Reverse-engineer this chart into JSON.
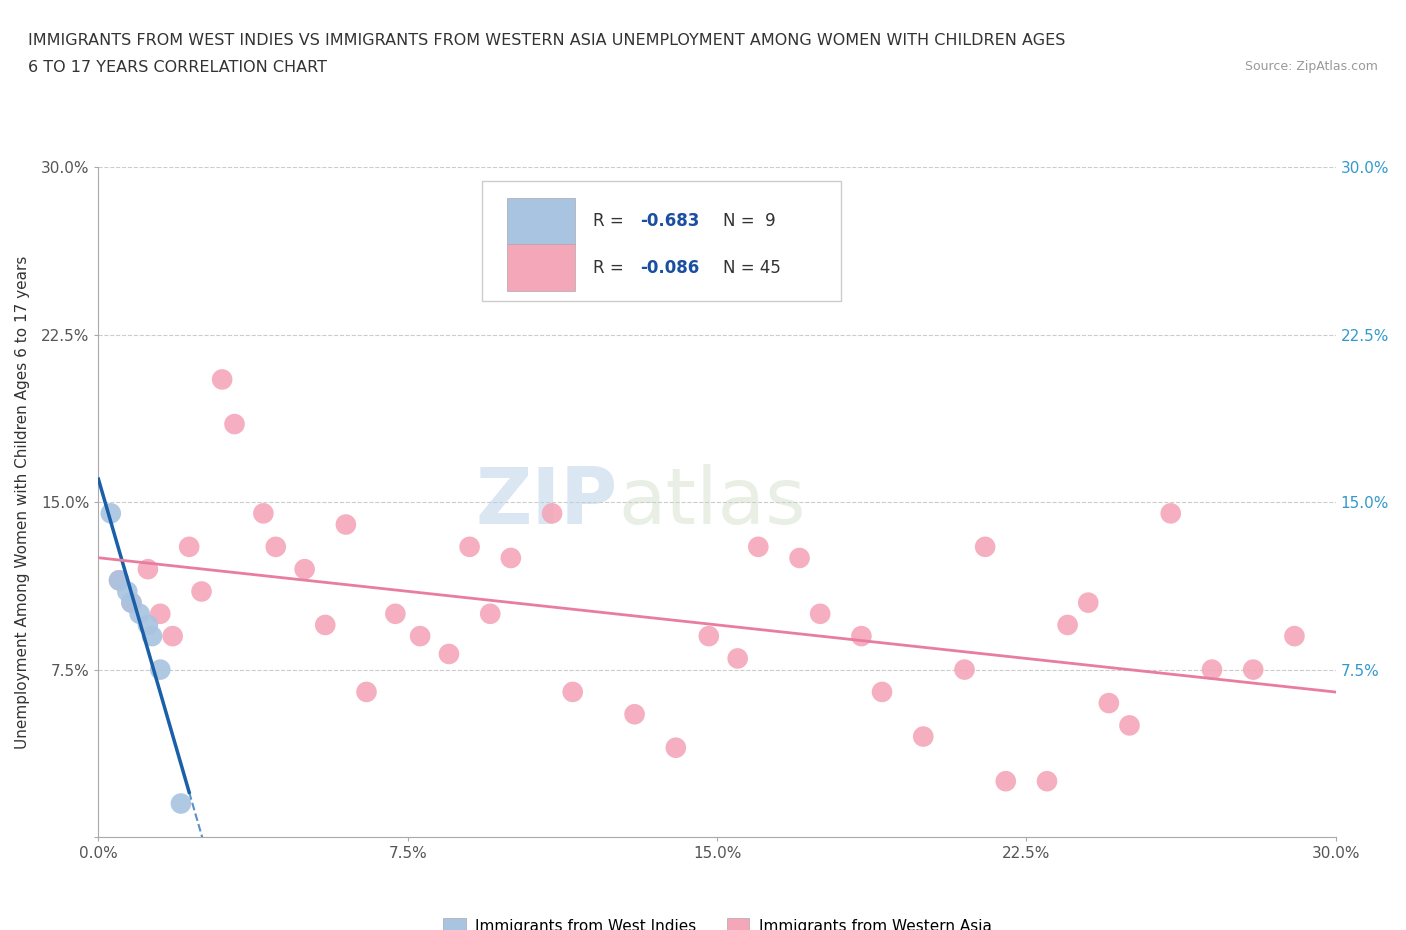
{
  "title_line1": "IMMIGRANTS FROM WEST INDIES VS IMMIGRANTS FROM WESTERN ASIA UNEMPLOYMENT AMONG WOMEN WITH CHILDREN AGES",
  "title_line2": "6 TO 17 YEARS CORRELATION CHART",
  "source": "Source: ZipAtlas.com",
  "ylabel": "Unemployment Among Women with Children Ages 6 to 17 years",
  "xlim": [
    0.0,
    0.3
  ],
  "ylim": [
    0.0,
    0.3
  ],
  "xticks": [
    0.0,
    0.075,
    0.15,
    0.225,
    0.3
  ],
  "yticks": [
    0.0,
    0.075,
    0.15,
    0.225,
    0.3
  ],
  "xticklabels": [
    "0.0%",
    "7.5%",
    "15.0%",
    "22.5%",
    "30.0%"
  ],
  "yticklabels": [
    "",
    "7.5%",
    "15.0%",
    "22.5%",
    "30.0%"
  ],
  "right_yticklabels": [
    "7.5%",
    "15.0%",
    "22.5%",
    "30.0%"
  ],
  "right_yticks": [
    0.075,
    0.15,
    0.225,
    0.3
  ],
  "west_indies_R": -0.683,
  "west_indies_N": 9,
  "western_asia_R": -0.086,
  "western_asia_N": 45,
  "west_indies_color": "#a8c4e0",
  "western_asia_color": "#f4a7b9",
  "west_indies_line_color": "#1a5fa8",
  "western_asia_line_color": "#e87da0",
  "legend_R_color": "#1a4fa0",
  "watermark_zip": "ZIP",
  "watermark_atlas": "atlas",
  "west_indies_x": [
    0.003,
    0.005,
    0.007,
    0.008,
    0.01,
    0.012,
    0.013,
    0.015,
    0.02
  ],
  "west_indies_y": [
    0.145,
    0.115,
    0.11,
    0.105,
    0.1,
    0.095,
    0.09,
    0.075,
    0.015
  ],
  "western_asia_x": [
    0.005,
    0.008,
    0.012,
    0.015,
    0.018,
    0.022,
    0.025,
    0.03,
    0.033,
    0.04,
    0.043,
    0.05,
    0.055,
    0.06,
    0.065,
    0.072,
    0.078,
    0.085,
    0.09,
    0.095,
    0.1,
    0.11,
    0.115,
    0.13,
    0.14,
    0.148,
    0.155,
    0.16,
    0.17,
    0.175,
    0.185,
    0.19,
    0.2,
    0.21,
    0.215,
    0.22,
    0.23,
    0.235,
    0.24,
    0.245,
    0.25,
    0.26,
    0.27,
    0.28,
    0.29
  ],
  "western_asia_y": [
    0.115,
    0.105,
    0.12,
    0.1,
    0.09,
    0.13,
    0.11,
    0.205,
    0.185,
    0.145,
    0.13,
    0.12,
    0.095,
    0.14,
    0.065,
    0.1,
    0.09,
    0.082,
    0.13,
    0.1,
    0.125,
    0.145,
    0.065,
    0.055,
    0.04,
    0.09,
    0.08,
    0.13,
    0.125,
    0.1,
    0.09,
    0.065,
    0.045,
    0.075,
    0.13,
    0.025,
    0.025,
    0.095,
    0.105,
    0.06,
    0.05,
    0.145,
    0.075,
    0.075,
    0.09
  ]
}
